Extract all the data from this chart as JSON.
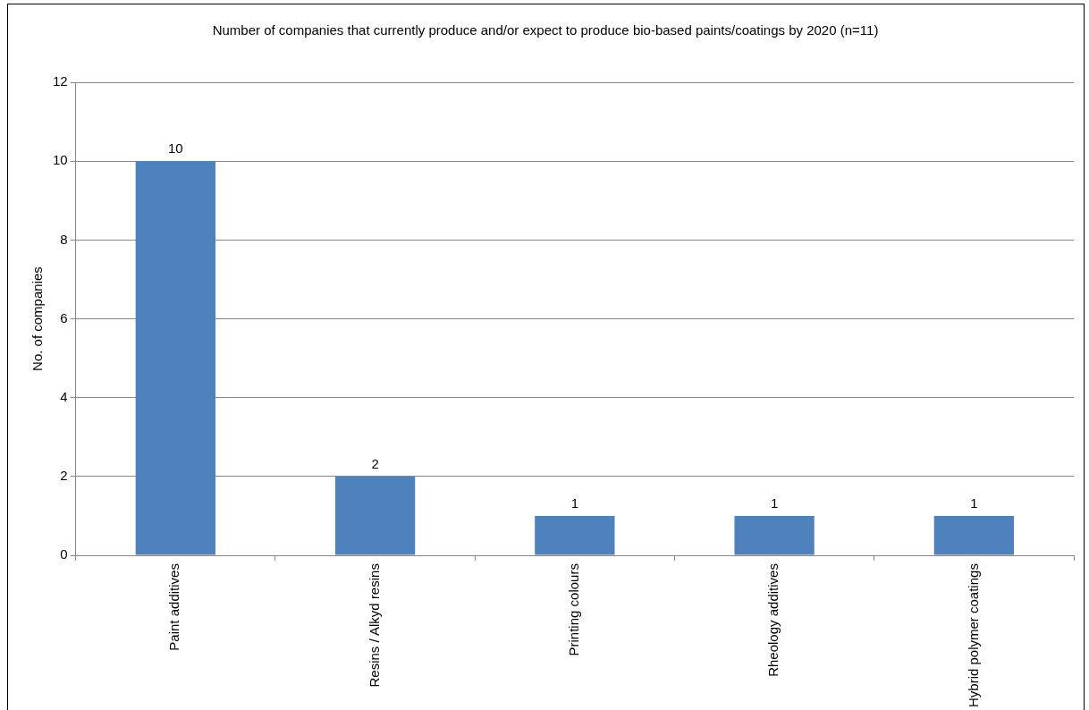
{
  "chart_data": {
    "type": "bar",
    "title": "Number of companies that currently produce and/or expect to produce bio-based paints/coatings by 2020 (n=11)",
    "ylabel": "No. of companies",
    "categories": [
      "Paint additives",
      "Resins / Alkyd resins",
      "Printing colours",
      "Rheology additives",
      "Hybrid polymer coatings"
    ],
    "values": [
      10,
      2,
      1,
      1,
      1
    ],
    "color": "#4f81bd",
    "ylim": [
      0,
      12
    ],
    "yticks": [
      0,
      2,
      4,
      6,
      8,
      10,
      12
    ],
    "grid": "y",
    "legend": false,
    "data_labels": true
  }
}
